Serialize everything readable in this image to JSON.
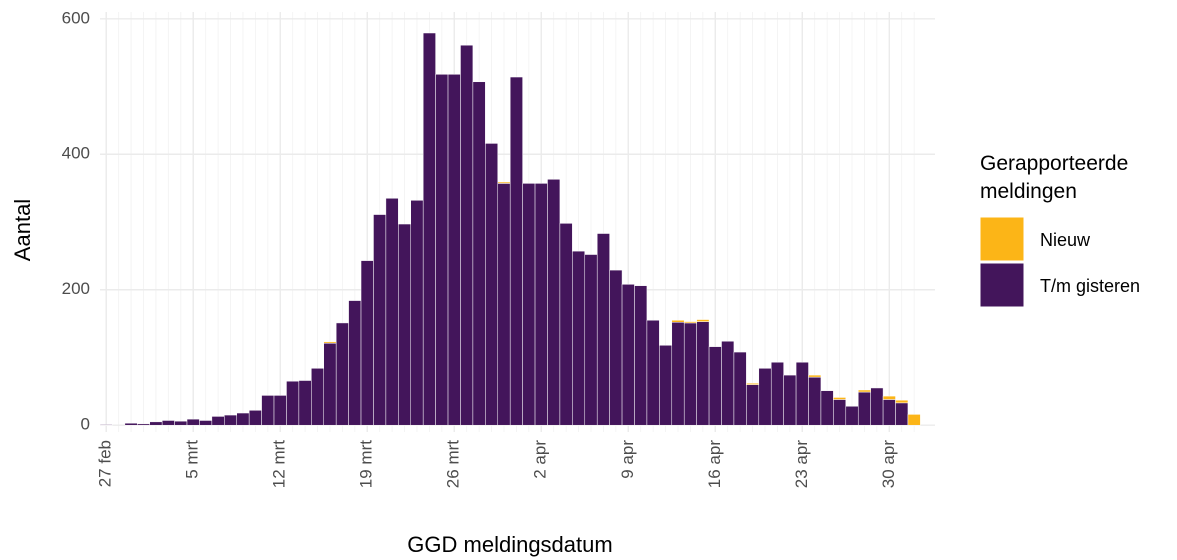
{
  "chart_data": {
    "type": "stacked_bar",
    "x_label": "GGD meldingsdatum",
    "y_label": "Aantal",
    "legend_title": "Gerapporteerde meldingen",
    "categories": [
      "27 feb",
      null,
      null,
      null,
      null,
      null,
      null,
      "5 mrt",
      null,
      null,
      null,
      null,
      null,
      null,
      "12 mrt",
      null,
      null,
      null,
      null,
      null,
      null,
      "19 mrt",
      null,
      null,
      null,
      null,
      null,
      null,
      "26 mrt",
      null,
      null,
      null,
      null,
      null,
      null,
      "2 apr",
      null,
      null,
      null,
      null,
      null,
      null,
      "9 apr",
      null,
      null,
      null,
      null,
      null,
      null,
      "16 apr",
      null,
      null,
      null,
      null,
      null,
      null,
      "23 apr",
      null,
      null,
      null,
      null,
      null,
      null,
      "30 apr",
      null,
      null
    ],
    "series": [
      {
        "name": "T/m gisteren",
        "color": "#43155b",
        "values": [
          1,
          0,
          3,
          2,
          5,
          7,
          6,
          9,
          7,
          13,
          15,
          18,
          22,
          44,
          44,
          65,
          66,
          84,
          121,
          151,
          184,
          243,
          311,
          335,
          297,
          332,
          579,
          518,
          518,
          561,
          507,
          416,
          357,
          514,
          357,
          357,
          363,
          298,
          257,
          252,
          283,
          229,
          208,
          206,
          155,
          118,
          152,
          151,
          153,
          116,
          124,
          108,
          60,
          84,
          93,
          74,
          93,
          71,
          51,
          38,
          28,
          49,
          55,
          38,
          33,
          0
        ]
      },
      {
        "name": "Nieuw",
        "color": "#fcb517",
        "values": [
          0,
          0,
          0,
          0,
          0,
          0,
          0,
          0,
          0,
          0,
          0,
          0,
          0,
          0,
          0,
          0,
          0,
          0,
          2,
          0,
          0,
          0,
          0,
          0,
          0,
          0,
          0,
          0,
          0,
          0,
          0,
          0,
          2,
          0,
          0,
          0,
          0,
          0,
          0,
          0,
          0,
          0,
          0,
          0,
          0,
          0,
          3,
          2,
          3,
          0,
          0,
          0,
          2,
          0,
          0,
          0,
          0,
          3,
          0,
          3,
          0,
          3,
          0,
          5,
          4,
          16
        ]
      }
    ],
    "ylim": [
      -10,
      610
    ],
    "yticks": [
      0,
      200,
      400,
      600
    ],
    "grid": true,
    "legend": "right"
  }
}
